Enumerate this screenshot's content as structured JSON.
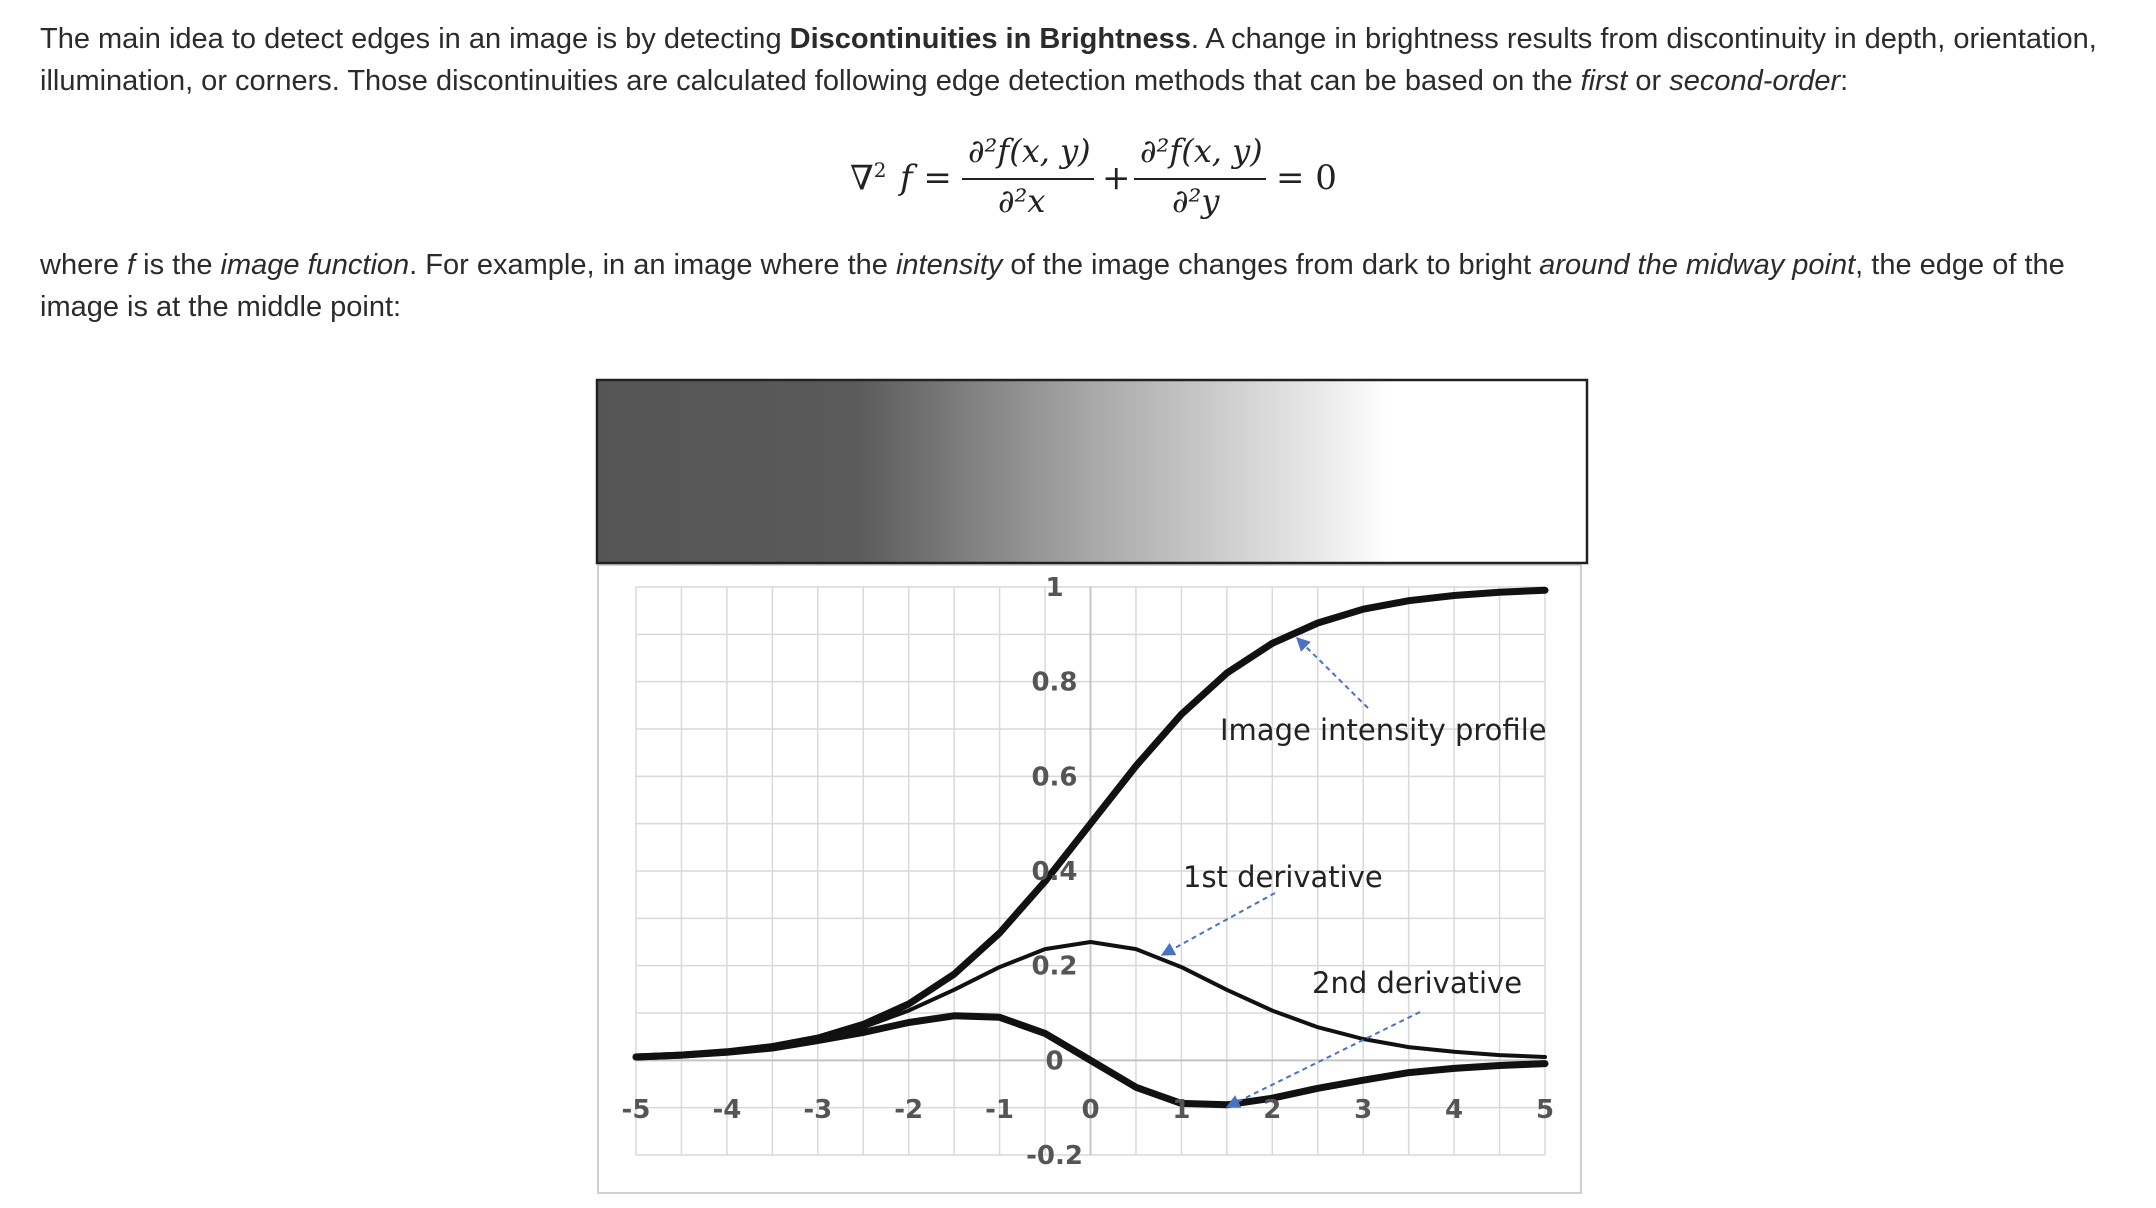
{
  "text": {
    "p1_a": "The main idea to detect edges in an image is by detecting ",
    "p1_b": "Discontinuities in Brightness",
    "p1_c": ". A change in brightness results from discontinuity in depth, orientation, illumination, or corners. Those discontinuities are calculated following edge detection methods that can be based on the ",
    "p1_d": "first",
    "p1_e": " or ",
    "p1_f": "second-order",
    "p1_g": ":",
    "p2_a": "where ",
    "p2_b": "f",
    "p2_c": " is the ",
    "p2_d": "image function",
    "p2_e": ". For example, in an image where the ",
    "p2_f": "intensity",
    "p2_g": " of the image changes from dark to bright ",
    "p2_h": "around the midway point",
    "p2_i": ", the edge of the image is at the middle point:"
  },
  "equation": {
    "lhs": "∇",
    "lhs_sup": "2",
    "lhs_f": "f =",
    "num1": "∂²f(x, y)",
    "den1": "∂²x",
    "plus": "+",
    "num2": "∂²f(x, y)",
    "den2": "∂²y",
    "rhs": "= 0"
  },
  "chart_data": {
    "type": "line",
    "xlim": [
      -5,
      5
    ],
    "ylim": [
      -0.2,
      1
    ],
    "x_ticks": [
      "-5",
      "-4",
      "-3",
      "-2",
      "-1",
      "0",
      "1",
      "2",
      "3",
      "4",
      "5"
    ],
    "y_ticks": [
      "1",
      "0.8",
      "0.6",
      "0.4",
      "0.2",
      "0",
      "-0.2"
    ],
    "grid": true,
    "gradient_strip": {
      "from": "#555555",
      "to": "#ffffff",
      "note_colors": [
        "#555555",
        "#ffffff"
      ]
    },
    "series": [
      {
        "name": "Image intensity profile",
        "x": [
          -5,
          -4.5,
          -4,
          -3.5,
          -3,
          -2.5,
          -2,
          -1.5,
          -1,
          -0.5,
          0,
          0.5,
          1,
          1.5,
          2,
          2.5,
          3,
          3.5,
          4,
          4.5,
          5
        ],
        "values": [
          0.007,
          0.011,
          0.018,
          0.029,
          0.047,
          0.076,
          0.119,
          0.182,
          0.269,
          0.378,
          0.5,
          0.622,
          0.731,
          0.818,
          0.881,
          0.924,
          0.953,
          0.971,
          0.982,
          0.989,
          0.993
        ]
      },
      {
        "name": "1st derivative",
        "x": [
          -5,
          -4.5,
          -4,
          -3.5,
          -3,
          -2.5,
          -2,
          -1.5,
          -1,
          -0.5,
          0,
          0.5,
          1,
          1.5,
          2,
          2.5,
          3,
          3.5,
          4,
          4.5,
          5
        ],
        "values": [
          0.007,
          0.011,
          0.018,
          0.028,
          0.045,
          0.07,
          0.105,
          0.149,
          0.197,
          0.235,
          0.25,
          0.235,
          0.197,
          0.149,
          0.105,
          0.07,
          0.045,
          0.028,
          0.018,
          0.011,
          0.007
        ]
      },
      {
        "name": "2nd derivative",
        "x": [
          -5,
          -4.5,
          -4,
          -3.5,
          -3,
          -2.5,
          -2,
          -1.5,
          -1,
          -0.5,
          0,
          0.5,
          1,
          1.5,
          2,
          2.5,
          3,
          3.5,
          4,
          4.5,
          5
        ],
        "values": [
          0.007,
          0.011,
          0.017,
          0.026,
          0.042,
          0.059,
          0.08,
          0.094,
          0.091,
          0.057,
          0.0,
          -0.057,
          -0.091,
          -0.094,
          -0.08,
          -0.059,
          -0.042,
          -0.026,
          -0.017,
          -0.011,
          -0.007
        ]
      }
    ],
    "annotations": [
      "Image intensity profile",
      "1st derivative",
      "2nd derivative"
    ]
  }
}
